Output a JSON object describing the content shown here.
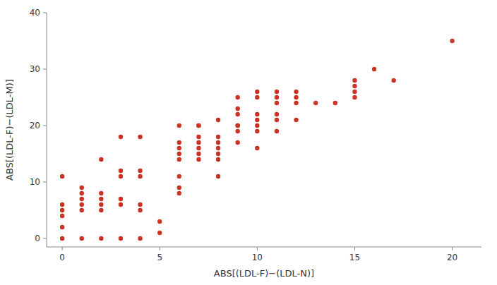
{
  "chart_data": {
    "type": "scatter",
    "x": [
      0,
      0,
      0,
      0,
      0,
      0,
      1,
      1,
      1,
      1,
      1,
      1,
      2,
      2,
      2,
      2,
      2,
      2,
      3,
      3,
      3,
      3,
      3,
      3,
      4,
      4,
      4,
      4,
      4,
      4,
      5,
      5,
      6,
      6,
      6,
      6,
      6,
      6,
      6,
      6,
      7,
      7,
      7,
      7,
      7,
      7,
      7,
      8,
      8,
      8,
      8,
      8,
      8,
      8,
      9,
      9,
      9,
      9,
      9,
      9,
      9,
      10,
      10,
      10,
      10,
      10,
      10,
      10,
      11,
      11,
      11,
      11,
      11,
      11,
      12,
      12,
      12,
      12,
      13,
      14,
      15,
      15,
      15,
      15,
      16,
      17,
      20
    ],
    "y": [
      0,
      2,
      4,
      5,
      6,
      11,
      0,
      5,
      6,
      7,
      8,
      9,
      0,
      5,
      6,
      7,
      8,
      14,
      0,
      6,
      7,
      11,
      12,
      18,
      0,
      5,
      6,
      11,
      12,
      18,
      1,
      3,
      8,
      9,
      11,
      14,
      15,
      16,
      17,
      20,
      14,
      15,
      16,
      17,
      18,
      20,
      20,
      11,
      14,
      15,
      16,
      17,
      18,
      21,
      17,
      19,
      20,
      20,
      22,
      23,
      25,
      16,
      19,
      20,
      21,
      22,
      25,
      26,
      19,
      21,
      22,
      24,
      25,
      26,
      21,
      24,
      25,
      26,
      24,
      24,
      25,
      26,
      27,
      28,
      30,
      28,
      35
    ],
    "color": "#cc3322",
    "xlabel": "ABS[(LDL-F)−(LDL-N)]",
    "ylabel": "ABS[(LDL-F)−(LDL-M)]",
    "xlim": [
      -0.8,
      21.5
    ],
    "ylim": [
      -1.5,
      40
    ],
    "xticks": [
      0,
      5,
      10,
      15,
      20
    ],
    "yticks": [
      0,
      10,
      20,
      30,
      40
    ],
    "grid": false
  }
}
